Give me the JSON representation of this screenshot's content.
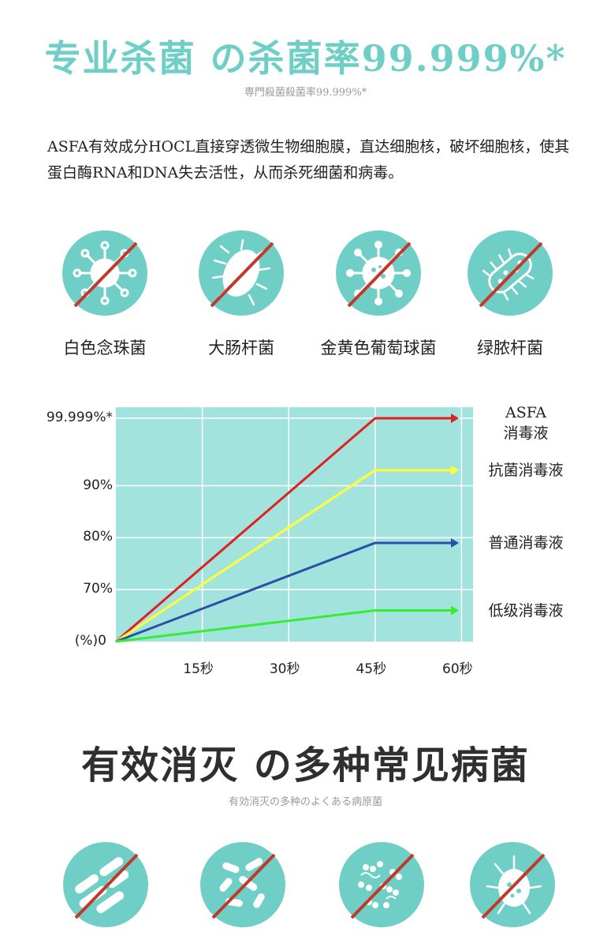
{
  "section1": {
    "title": "专业杀菌 の杀菌率99.999%*",
    "subtitle": "専門殺菌殺菌率99.999%*",
    "description": "ASFA有效成分HOCL直接穿透微生物细胞膜，直达细胞核，破坏细胞核，使其蛋白酶RNA和DNA失去活性，从而杀死细菌和病毒。"
  },
  "bacteria": [
    {
      "label": "白色念珠菌",
      "icon": "virus-crossed-icon"
    },
    {
      "label": "大肠杆菌",
      "icon": "bacterium-crossed-icon"
    },
    {
      "label": "金黄色葡萄球菌",
      "icon": "coronavirus-crossed-icon"
    },
    {
      "label": "绿脓杆菌",
      "icon": "bacillus-crossed-icon"
    }
  ],
  "chart_data": {
    "type": "line",
    "x": [
      0,
      45,
      60
    ],
    "x_ticks": [
      "15秒",
      "30秒",
      "45秒",
      "60秒"
    ],
    "x_tick_values": [
      15,
      30,
      45,
      60
    ],
    "y_ticks": [
      "(%)0",
      "70%",
      "80%",
      "90%",
      "99.999%*"
    ],
    "y_tick_values": [
      0,
      1,
      2,
      3,
      4.3
    ],
    "ylim": [
      0,
      4.3
    ],
    "xlim": [
      0,
      62
    ],
    "grid": true,
    "legend": "right",
    "series": [
      {
        "name": "ASFA\n消毒液",
        "name_lines": [
          "ASFA",
          "消毒液"
        ],
        "color": "#e02020",
        "values": [
          0,
          4.3,
          4.3
        ]
      },
      {
        "name": "抗菌消毒液",
        "name_lines": [
          "抗菌消毒液"
        ],
        "color": "#ffff33",
        "values": [
          0,
          3.3,
          3.3
        ]
      },
      {
        "name": "普通消毒液",
        "name_lines": [
          "普通消毒液"
        ],
        "color": "#2a4fa8",
        "values": [
          0,
          1.9,
          1.9
        ]
      },
      {
        "name": "低级消毒液",
        "name_lines": [
          "低级消毒液"
        ],
        "color": "#33ee33",
        "values": [
          0,
          0.6,
          0.6
        ]
      }
    ]
  },
  "section2": {
    "title": "有效消灭 の多种常见病菌",
    "subtitle": "有効消灭の多种のよくある病原菌"
  },
  "bacteria2": [
    {
      "icon": "rod-bacteria-crossed-icon"
    },
    {
      "icon": "short-rods-crossed-icon"
    },
    {
      "icon": "cocci-crossed-icon"
    },
    {
      "icon": "flagellate-crossed-icon"
    }
  ],
  "colors": {
    "teal": "#6fcfc6",
    "chart_bg": "#a3e3dd",
    "strike": "#c0392b"
  }
}
